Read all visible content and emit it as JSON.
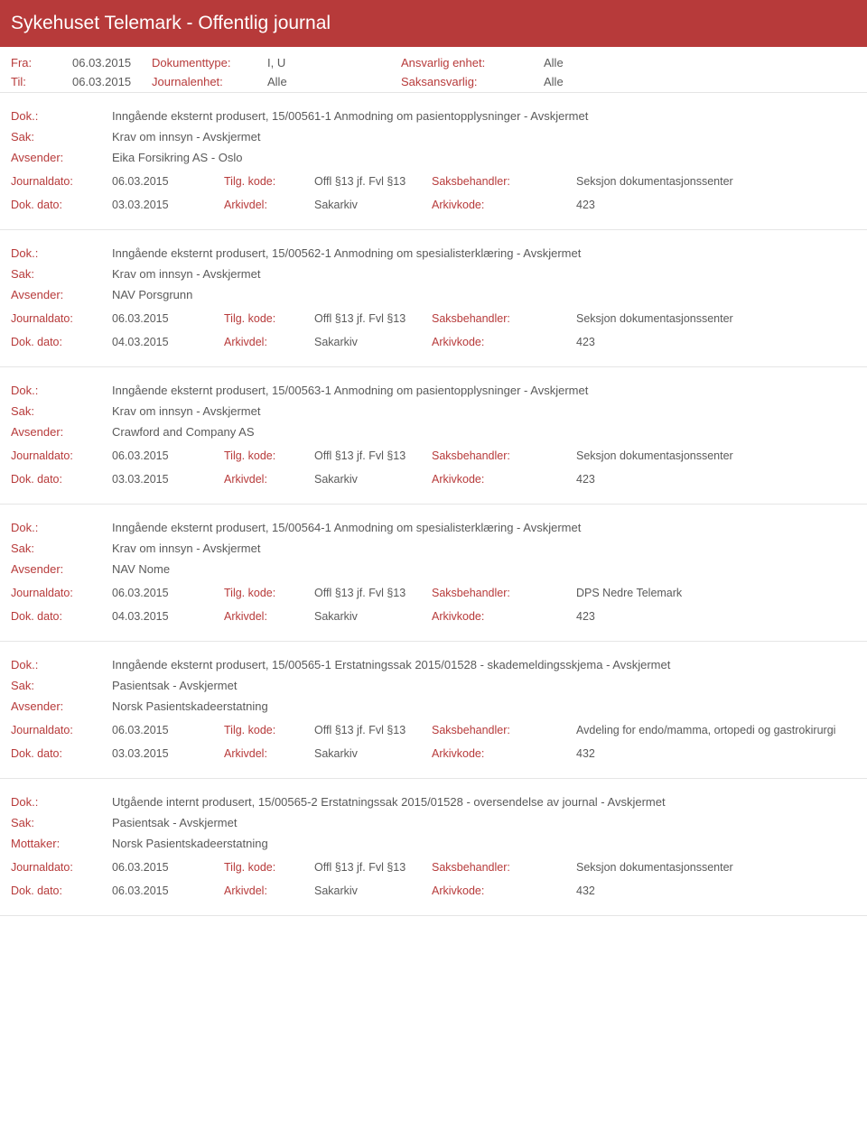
{
  "header": {
    "title": "Sykehuset Telemark - Offentlig journal"
  },
  "filters": {
    "fra_label": "Fra:",
    "fra_val": "06.03.2015",
    "til_label": "Til:",
    "til_val": "06.03.2015",
    "dokumenttype_label": "Dokumenttype:",
    "dokumenttype_val": "I, U",
    "journalenhet_label": "Journalenhet:",
    "journalenhet_val": "Alle",
    "ansvarlig_label": "Ansvarlig enhet:",
    "ansvarlig_val": "Alle",
    "saksansvarlig_label": "Saksansvarlig:",
    "saksansvarlig_val": "Alle"
  },
  "labels": {
    "dok": "Dok.:",
    "sak": "Sak:",
    "avsender": "Avsender:",
    "mottaker": "Mottaker:",
    "journaldato": "Journaldato:",
    "tilgkode": "Tilg. kode:",
    "saksbehandler": "Saksbehandler:",
    "dokdato": "Dok. dato:",
    "arkivdel": "Arkivdel:",
    "arkivkode": "Arkivkode:"
  },
  "entries": [
    {
      "dok": "Inngående eksternt produsert, 15/00561-1 Anmodning om pasientopplysninger - Avskjermet",
      "sak": "Krav om innsyn - Avskjermet",
      "party_label": "Avsender:",
      "party": "Eika Forsikring AS - Oslo",
      "journaldato": "06.03.2015",
      "tilgkode": "Offl §13 jf. Fvl §13",
      "saksbehandler": "Seksjon dokumentasjonssenter",
      "dokdato": "03.03.2015",
      "arkivdel": "Sakarkiv",
      "arkivkode": "423"
    },
    {
      "dok": "Inngående eksternt produsert, 15/00562-1 Anmodning om spesialisterklæring - Avskjermet",
      "sak": "Krav om innsyn - Avskjermet",
      "party_label": "Avsender:",
      "party": "NAV Porsgrunn",
      "journaldato": "06.03.2015",
      "tilgkode": "Offl §13 jf. Fvl §13",
      "saksbehandler": "Seksjon dokumentasjonssenter",
      "dokdato": "04.03.2015",
      "arkivdel": "Sakarkiv",
      "arkivkode": "423"
    },
    {
      "dok": "Inngående eksternt produsert, 15/00563-1 Anmodning om pasientopplysninger - Avskjermet",
      "sak": "Krav om innsyn - Avskjermet",
      "party_label": "Avsender:",
      "party": "Crawford and Company AS",
      "journaldato": "06.03.2015",
      "tilgkode": "Offl §13 jf. Fvl §13",
      "saksbehandler": "Seksjon dokumentasjonssenter",
      "dokdato": "03.03.2015",
      "arkivdel": "Sakarkiv",
      "arkivkode": "423"
    },
    {
      "dok": "Inngående eksternt produsert, 15/00564-1 Anmodning om spesialisterklæring - Avskjermet",
      "sak": "Krav om innsyn - Avskjermet",
      "party_label": "Avsender:",
      "party": "NAV Nome",
      "journaldato": "06.03.2015",
      "tilgkode": "Offl §13 jf. Fvl §13",
      "saksbehandler": "DPS Nedre Telemark",
      "dokdato": "04.03.2015",
      "arkivdel": "Sakarkiv",
      "arkivkode": "423"
    },
    {
      "dok": "Inngående eksternt produsert, 15/00565-1 Erstatningssak 2015/01528 - skademeldingsskjema - Avskjermet",
      "sak": "Pasientsak - Avskjermet",
      "party_label": "Avsender:",
      "party": "Norsk Pasientskadeerstatning",
      "journaldato": "06.03.2015",
      "tilgkode": "Offl §13 jf. Fvl §13",
      "saksbehandler": "Avdeling for endo/mamma, ortopedi og gastrokirurgi",
      "dokdato": "03.03.2015",
      "arkivdel": "Sakarkiv",
      "arkivkode": "432"
    },
    {
      "dok": "Utgående internt produsert, 15/00565-2 Erstatningssak 2015/01528 - oversendelse av journal - Avskjermet",
      "sak": "Pasientsak - Avskjermet",
      "party_label": "Mottaker:",
      "party": "Norsk Pasientskadeerstatning",
      "journaldato": "06.03.2015",
      "tilgkode": "Offl §13 jf. Fvl §13",
      "saksbehandler": "Seksjon dokumentasjonssenter",
      "dokdato": "06.03.2015",
      "arkivdel": "Sakarkiv",
      "arkivkode": "432"
    }
  ]
}
